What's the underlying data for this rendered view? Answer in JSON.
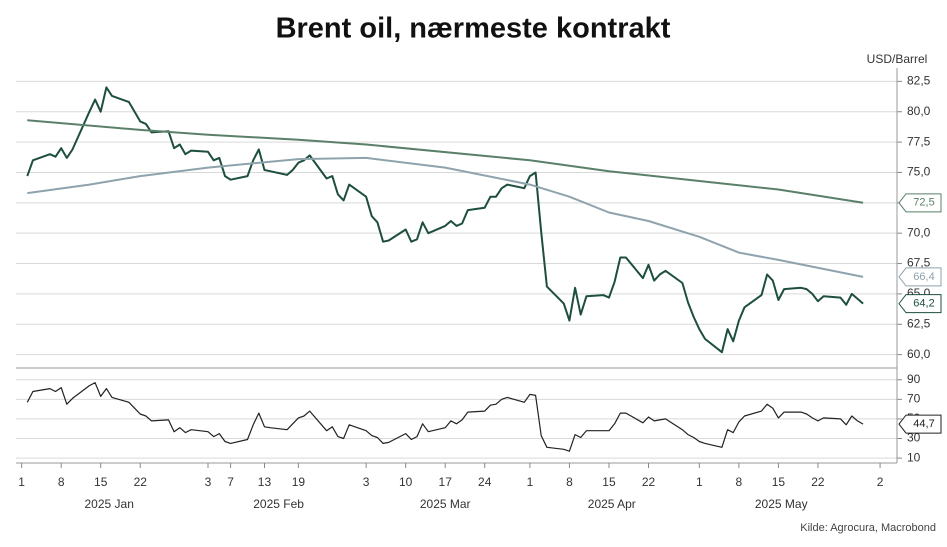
{
  "chart_data": {
    "type": "line",
    "title": "Brent oil, nærmeste kontrakt",
    "y_label": "USD/Barrel",
    "source": "Kilde: Agrocura, Macrobond",
    "xlim": [
      "2024-12-31",
      "2025-06-05"
    ],
    "xticks": [
      {
        "value": "2025-01-01",
        "label": "1"
      },
      {
        "value": "2025-01-08",
        "label": "8"
      },
      {
        "value": "2025-01-15",
        "label": "15"
      },
      {
        "value": "2025-01-22",
        "label": "22"
      },
      {
        "value": "2025-02-03",
        "label": "3"
      },
      {
        "value": "2025-02-07",
        "label": "7"
      },
      {
        "value": "2025-02-13",
        "label": "13"
      },
      {
        "value": "2025-02-19",
        "label": "19"
      },
      {
        "value": "2025-03-03",
        "label": "3"
      },
      {
        "value": "2025-03-10",
        "label": "10"
      },
      {
        "value": "2025-03-17",
        "label": "17"
      },
      {
        "value": "2025-03-24",
        "label": "24"
      },
      {
        "value": "2025-04-01",
        "label": "1"
      },
      {
        "value": "2025-04-08",
        "label": "8"
      },
      {
        "value": "2025-04-15",
        "label": "15"
      },
      {
        "value": "2025-04-22",
        "label": "22"
      },
      {
        "value": "2025-05-01",
        "label": "1"
      },
      {
        "value": "2025-05-08",
        "label": "8"
      },
      {
        "value": "2025-05-15",
        "label": "15"
      },
      {
        "value": "2025-05-22",
        "label": "22"
      },
      {
        "value": "2025-06-02",
        "label": "2"
      }
    ],
    "month_labels": [
      "2025 Jan",
      "2025 Feb",
      "2025 Mar",
      "2025 Apr",
      "2025 May"
    ],
    "ylim": [
      58.9,
      83.6
    ],
    "yticks": [
      {
        "value": 60.0,
        "label": "60,0"
      },
      {
        "value": 62.5,
        "label": "62,5"
      },
      {
        "value": 65.0,
        "label": "65,0"
      },
      {
        "value": 67.5,
        "label": "67,5"
      },
      {
        "value": 70.0,
        "label": "70,0"
      },
      {
        "value": 72.5,
        "label": "72,5"
      },
      {
        "value": 75.0,
        "label": "75,0"
      },
      {
        "value": 77.5,
        "label": "77,5"
      },
      {
        "value": 80.0,
        "label": "80,0"
      },
      {
        "value": 82.5,
        "label": "82,5"
      }
    ],
    "y2lim": [
      5,
      102
    ],
    "y2ticks": [
      10,
      30,
      50,
      70,
      90
    ],
    "grid": true,
    "x": [
      "2025-01-02",
      "2025-01-03",
      "2025-01-06",
      "2025-01-07",
      "2025-01-08",
      "2025-01-09",
      "2025-01-10",
      "2025-01-13",
      "2025-01-14",
      "2025-01-15",
      "2025-01-16",
      "2025-01-17",
      "2025-01-20",
      "2025-01-21",
      "2025-01-22",
      "2025-01-23",
      "2025-01-24",
      "2025-01-27",
      "2025-01-28",
      "2025-01-29",
      "2025-01-30",
      "2025-01-31",
      "2025-02-03",
      "2025-02-04",
      "2025-02-05",
      "2025-02-06",
      "2025-02-07",
      "2025-02-10",
      "2025-02-11",
      "2025-02-12",
      "2025-02-13",
      "2025-02-14",
      "2025-02-17",
      "2025-02-18",
      "2025-02-19",
      "2025-02-20",
      "2025-02-21",
      "2025-02-24",
      "2025-02-25",
      "2025-02-26",
      "2025-02-27",
      "2025-02-28",
      "2025-03-03",
      "2025-03-04",
      "2025-03-05",
      "2025-03-06",
      "2025-03-07",
      "2025-03-10",
      "2025-03-11",
      "2025-03-12",
      "2025-03-13",
      "2025-03-14",
      "2025-03-17",
      "2025-03-18",
      "2025-03-19",
      "2025-03-20",
      "2025-03-21",
      "2025-03-24",
      "2025-03-25",
      "2025-03-26",
      "2025-03-27",
      "2025-03-28",
      "2025-03-31",
      "2025-04-01",
      "2025-04-02",
      "2025-04-03",
      "2025-04-04",
      "2025-04-07",
      "2025-04-08",
      "2025-04-09",
      "2025-04-10",
      "2025-04-11",
      "2025-04-14",
      "2025-04-15",
      "2025-04-16",
      "2025-04-17",
      "2025-04-18",
      "2025-04-21",
      "2025-04-22",
      "2025-04-23",
      "2025-04-24",
      "2025-04-25",
      "2025-04-28",
      "2025-04-29",
      "2025-04-30",
      "2025-05-01",
      "2025-05-02",
      "2025-05-05",
      "2025-05-06",
      "2025-05-07",
      "2025-05-08",
      "2025-05-09",
      "2025-05-12",
      "2025-05-13",
      "2025-05-14",
      "2025-05-15",
      "2025-05-16",
      "2025-05-19",
      "2025-05-20",
      "2025-05-21",
      "2025-05-22",
      "2025-05-23",
      "2025-05-26",
      "2025-05-27",
      "2025-05-28",
      "2025-05-29",
      "2025-05-30"
    ],
    "series": [
      {
        "color": "#1d4f3c",
        "width": 2,
        "end_label": "64,2",
        "values": [
          74.7,
          76.0,
          76.5,
          76.3,
          77.0,
          76.2,
          76.9,
          80.0,
          81.0,
          80.0,
          82.0,
          81.3,
          80.8,
          80.0,
          79.2,
          79.0,
          78.3,
          78.4,
          77.0,
          77.3,
          76.5,
          76.8,
          76.7,
          76.0,
          76.2,
          74.7,
          74.4,
          74.7,
          76.0,
          76.9,
          75.2,
          75.1,
          74.8,
          75.2,
          75.8,
          76.0,
          76.4,
          74.5,
          74.7,
          73.2,
          72.7,
          74.0,
          73.0,
          71.4,
          70.9,
          69.3,
          69.4,
          70.3,
          69.3,
          69.5,
          70.9,
          70.0,
          70.6,
          71.0,
          70.6,
          70.8,
          71.9,
          72.1,
          73.0,
          73.0,
          73.7,
          74.0,
          73.7,
          74.7,
          75.0,
          70.1,
          65.6,
          64.2,
          62.8,
          65.5,
          63.3,
          64.8,
          64.9,
          64.7,
          66.0,
          68.0,
          68.0,
          66.3,
          67.4,
          66.1,
          66.6,
          66.9,
          65.9,
          64.3,
          63.1,
          62.1,
          61.3,
          60.2,
          62.1,
          61.1,
          62.8,
          63.9,
          64.9,
          66.6,
          66.1,
          64.5,
          65.4,
          65.5,
          65.4,
          65.0,
          64.4,
          64.8,
          64.7,
          64.1,
          65.0,
          64.6,
          64.2
        ]
      },
      {
        "color": "#5a8069",
        "width": 2,
        "end_label": "72,5",
        "x": [
          "2025-01-02",
          "2025-01-22",
          "2025-02-03",
          "2025-02-19",
          "2025-03-03",
          "2025-04-01",
          "2025-04-15",
          "2025-05-01",
          "2025-05-15",
          "2025-05-30"
        ],
        "values": [
          79.3,
          78.5,
          78.1,
          77.7,
          77.3,
          76.0,
          75.1,
          74.3,
          73.6,
          72.5
        ]
      },
      {
        "color": "#8ea3ad",
        "width": 2,
        "end_label": "66,4",
        "x": [
          "2025-01-02",
          "2025-01-13",
          "2025-01-22",
          "2025-02-03",
          "2025-02-19",
          "2025-03-03",
          "2025-03-17",
          "2025-04-01",
          "2025-04-08",
          "2025-04-15",
          "2025-04-22",
          "2025-05-01",
          "2025-05-08",
          "2025-05-15",
          "2025-05-30"
        ],
        "values": [
          73.3,
          74.0,
          74.7,
          75.4,
          76.1,
          76.2,
          75.4,
          74.0,
          73.0,
          71.7,
          71.0,
          69.7,
          68.4,
          67.8,
          66.4
        ]
      },
      {
        "color": "#222222",
        "width": 1.2,
        "axis": "y2",
        "end_label": "44,7",
        "values": [
          67,
          78,
          81,
          78,
          82,
          65,
          71,
          84,
          87,
          73,
          81,
          72,
          67,
          61,
          55,
          53,
          48,
          49,
          37,
          41,
          36,
          39,
          37,
          32,
          35,
          27,
          25,
          29,
          44,
          56,
          42,
          41,
          39,
          45,
          51,
          53,
          58,
          38,
          42,
          32,
          30,
          44,
          38,
          33,
          31,
          25,
          26,
          35,
          29,
          32,
          45,
          37,
          41,
          48,
          45,
          49,
          57,
          58,
          64,
          65,
          70,
          72,
          67,
          75,
          74,
          33,
          21,
          19,
          17,
          34,
          31,
          38,
          38,
          38,
          45,
          56,
          56,
          46,
          52,
          48,
          49,
          50,
          39,
          34,
          31,
          27,
          25,
          21,
          39,
          36,
          47,
          53,
          58,
          65,
          61,
          51,
          57,
          57,
          55,
          51,
          48,
          51,
          50,
          44,
          53,
          48,
          44.7
        ]
      }
    ]
  }
}
